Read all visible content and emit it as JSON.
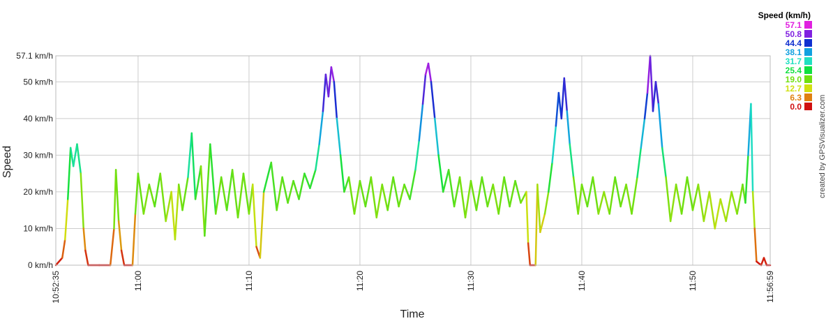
{
  "chart_data": {
    "type": "line",
    "title": "",
    "xlabel": "Time",
    "ylabel": "Speed",
    "ylim": [
      0,
      57.1
    ],
    "xlim": [
      "10:52:35",
      "11:56:59"
    ],
    "grid": true,
    "y_ticks": [
      {
        "value": 0,
        "label": "0 km/h"
      },
      {
        "value": 10,
        "label": "10 km/h"
      },
      {
        "value": 20,
        "label": "20 km/h"
      },
      {
        "value": 30,
        "label": "30 km/h"
      },
      {
        "value": 40,
        "label": "40 km/h"
      },
      {
        "value": 50,
        "label": "50 km/h"
      },
      {
        "value": 57.1,
        "label": "57.1 km/h"
      }
    ],
    "x_ticks": [
      {
        "time": "10:52:35",
        "label": "10:52:35"
      },
      {
        "time": "11:00:00",
        "label": "11:00"
      },
      {
        "time": "11:10:00",
        "label": "11:10"
      },
      {
        "time": "11:20:00",
        "label": "11:20"
      },
      {
        "time": "11:30:00",
        "label": "11:30"
      },
      {
        "time": "11:40:00",
        "label": "11:40"
      },
      {
        "time": "11:50:00",
        "label": "11:50"
      },
      {
        "time": "11:56:59",
        "label": "11:56:59"
      }
    ],
    "series": [
      {
        "color_by": "speed",
        "points": [
          [
            "10:52:35",
            0
          ],
          [
            "10:53:10",
            2
          ],
          [
            "10:53:25",
            7
          ],
          [
            "10:53:40",
            18
          ],
          [
            "10:53:55",
            32
          ],
          [
            "10:54:10",
            27
          ],
          [
            "10:54:30",
            33
          ],
          [
            "10:54:50",
            25
          ],
          [
            "10:55:05",
            10
          ],
          [
            "10:55:15",
            4
          ],
          [
            "10:55:30",
            0
          ],
          [
            "10:56:30",
            0
          ],
          [
            "10:57:30",
            0
          ],
          [
            "10:57:50",
            10
          ],
          [
            "10:58:00",
            26
          ],
          [
            "10:58:15",
            12
          ],
          [
            "10:58:30",
            4
          ],
          [
            "10:58:45",
            0
          ],
          [
            "10:59:30",
            0
          ],
          [
            "10:59:45",
            14
          ],
          [
            "11:00:00",
            25
          ],
          [
            "11:00:30",
            14
          ],
          [
            "11:01:00",
            22
          ],
          [
            "11:01:30",
            16
          ],
          [
            "11:02:00",
            25
          ],
          [
            "11:02:30",
            12
          ],
          [
            "11:03:00",
            20
          ],
          [
            "11:03:20",
            7
          ],
          [
            "11:03:40",
            22
          ],
          [
            "11:04:00",
            15
          ],
          [
            "11:04:30",
            24
          ],
          [
            "11:04:50",
            36
          ],
          [
            "11:05:10",
            18
          ],
          [
            "11:05:40",
            27
          ],
          [
            "11:06:00",
            8
          ],
          [
            "11:06:30",
            33
          ],
          [
            "11:07:00",
            14
          ],
          [
            "11:07:30",
            24
          ],
          [
            "11:08:00",
            15
          ],
          [
            "11:08:30",
            26
          ],
          [
            "11:09:00",
            13
          ],
          [
            "11:09:30",
            25
          ],
          [
            "11:10:00",
            14
          ],
          [
            "11:10:20",
            22
          ],
          [
            "11:10:40",
            5
          ],
          [
            "11:11:00",
            2
          ],
          [
            "11:11:20",
            20
          ],
          [
            "11:12:00",
            28
          ],
          [
            "11:12:30",
            15
          ],
          [
            "11:13:00",
            24
          ],
          [
            "11:13:30",
            17
          ],
          [
            "11:14:00",
            23
          ],
          [
            "11:14:30",
            18
          ],
          [
            "11:15:00",
            25
          ],
          [
            "11:15:30",
            21
          ],
          [
            "11:16:00",
            26
          ],
          [
            "11:16:20",
            33
          ],
          [
            "11:16:40",
            42
          ],
          [
            "11:16:55",
            52
          ],
          [
            "11:17:10",
            46
          ],
          [
            "11:17:25",
            54
          ],
          [
            "11:17:40",
            50
          ],
          [
            "11:17:55",
            40
          ],
          [
            "11:18:15",
            30
          ],
          [
            "11:18:35",
            20
          ],
          [
            "11:19:00",
            24
          ],
          [
            "11:19:30",
            14
          ],
          [
            "11:20:00",
            23
          ],
          [
            "11:20:30",
            16
          ],
          [
            "11:21:00",
            24
          ],
          [
            "11:21:30",
            13
          ],
          [
            "11:22:00",
            22
          ],
          [
            "11:22:30",
            15
          ],
          [
            "11:23:00",
            24
          ],
          [
            "11:23:30",
            16
          ],
          [
            "11:24:00",
            22
          ],
          [
            "11:24:30",
            18
          ],
          [
            "11:25:00",
            26
          ],
          [
            "11:25:20",
            34
          ],
          [
            "11:25:40",
            44
          ],
          [
            "11:25:55",
            52
          ],
          [
            "11:26:10",
            55
          ],
          [
            "11:26:25",
            50
          ],
          [
            "11:26:45",
            40
          ],
          [
            "11:27:05",
            30
          ],
          [
            "11:27:30",
            20
          ],
          [
            "11:28:00",
            26
          ],
          [
            "11:28:30",
            16
          ],
          [
            "11:29:00",
            24
          ],
          [
            "11:29:30",
            13
          ],
          [
            "11:30:00",
            23
          ],
          [
            "11:30:30",
            15
          ],
          [
            "11:31:00",
            24
          ],
          [
            "11:31:30",
            16
          ],
          [
            "11:32:00",
            22
          ],
          [
            "11:32:30",
            14
          ],
          [
            "11:33:00",
            24
          ],
          [
            "11:33:30",
            16
          ],
          [
            "11:34:00",
            23
          ],
          [
            "11:34:30",
            17
          ],
          [
            "11:35:00",
            20
          ],
          [
            "11:35:10",
            6
          ],
          [
            "11:35:20",
            0
          ],
          [
            "11:35:50",
            0
          ],
          [
            "11:36:00",
            22
          ],
          [
            "11:36:15",
            9
          ],
          [
            "11:36:40",
            14
          ],
          [
            "11:37:00",
            20
          ],
          [
            "11:37:20",
            28
          ],
          [
            "11:37:40",
            38
          ],
          [
            "11:37:55",
            47
          ],
          [
            "11:38:10",
            40
          ],
          [
            "11:38:25",
            51
          ],
          [
            "11:38:40",
            42
          ],
          [
            "11:38:55",
            33
          ],
          [
            "11:39:15",
            24
          ],
          [
            "11:39:40",
            14
          ],
          [
            "11:40:00",
            22
          ],
          [
            "11:40:30",
            16
          ],
          [
            "11:41:00",
            24
          ],
          [
            "11:41:30",
            14
          ],
          [
            "11:42:00",
            20
          ],
          [
            "11:42:30",
            14
          ],
          [
            "11:43:00",
            24
          ],
          [
            "11:43:30",
            16
          ],
          [
            "11:44:00",
            22
          ],
          [
            "11:44:30",
            14
          ],
          [
            "11:45:00",
            24
          ],
          [
            "11:45:20",
            32
          ],
          [
            "11:45:40",
            40
          ],
          [
            "11:45:55",
            47
          ],
          [
            "11:46:10",
            57.1
          ],
          [
            "11:46:25",
            42
          ],
          [
            "11:46:40",
            50
          ],
          [
            "11:46:55",
            44
          ],
          [
            "11:47:15",
            32
          ],
          [
            "11:47:35",
            24
          ],
          [
            "11:48:00",
            12
          ],
          [
            "11:48:30",
            22
          ],
          [
            "11:49:00",
            14
          ],
          [
            "11:49:30",
            24
          ],
          [
            "11:50:00",
            15
          ],
          [
            "11:50:30",
            22
          ],
          [
            "11:51:00",
            12
          ],
          [
            "11:51:30",
            20
          ],
          [
            "11:52:00",
            10
          ],
          [
            "11:52:30",
            18
          ],
          [
            "11:53:00",
            12
          ],
          [
            "11:53:30",
            20
          ],
          [
            "11:54:00",
            14
          ],
          [
            "11:54:30",
            22
          ],
          [
            "11:54:45",
            17
          ],
          [
            "11:55:00",
            30
          ],
          [
            "11:55:15",
            44
          ],
          [
            "11:55:25",
            20
          ],
          [
            "11:55:35",
            10
          ],
          [
            "11:55:45",
            1
          ],
          [
            "11:56:10",
            0
          ],
          [
            "11:56:25",
            2
          ],
          [
            "11:56:40",
            0
          ],
          [
            "11:56:59",
            0
          ]
        ]
      }
    ],
    "legend": {
      "title": "Speed (km/h)",
      "position": "top-right",
      "items": [
        {
          "value": "57.1",
          "color": "#e020e0"
        },
        {
          "value": "50.8",
          "color": "#8020e0"
        },
        {
          "value": "44.4",
          "color": "#1030d0"
        },
        {
          "value": "38.1",
          "color": "#10a0e0"
        },
        {
          "value": "31.7",
          "color": "#20e0c0"
        },
        {
          "value": "25.4",
          "color": "#10e040"
        },
        {
          "value": "19.0",
          "color": "#70e010"
        },
        {
          "value": "12.7",
          "color": "#d0e010"
        },
        {
          "value": "6.3",
          "color": "#e08010"
        },
        {
          "value": "0.0",
          "color": "#d01010"
        }
      ]
    },
    "credit": "created by GPSVisualizer.com"
  }
}
